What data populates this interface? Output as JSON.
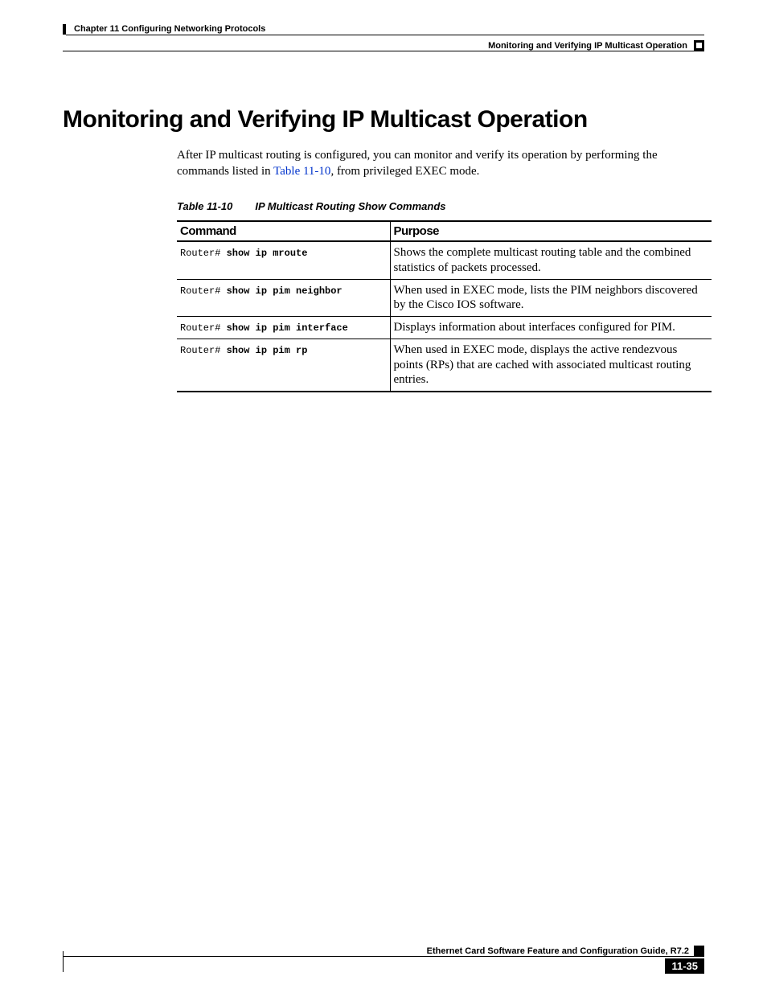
{
  "header": {
    "chapter_line": "Chapter 11 Configuring Networking Protocols",
    "section_line": "Monitoring and Verifying IP Multicast Operation"
  },
  "heading": "Monitoring and Verifying IP Multicast Operation",
  "intro": {
    "part1": "After IP multicast routing is configured, you can monitor and verify its operation by performing the commands listed in ",
    "link_text": "Table 11-10",
    "part2": ", from privileged EXEC mode."
  },
  "table": {
    "caption_num": "Table 11-10",
    "caption_title": "IP Multicast Routing Show Commands",
    "columns": {
      "command": "Command",
      "purpose": "Purpose"
    },
    "prompt": "Router# ",
    "rows": [
      {
        "cmd": "show ip mroute",
        "purpose": "Shows the complete multicast routing table and the combined statistics of packets processed."
      },
      {
        "cmd": "show ip pim neighbor",
        "purpose": "When used in EXEC mode, lists the PIM neighbors discovered by the Cisco IOS software."
      },
      {
        "cmd": "show ip pim interface",
        "purpose": "Displays information about interfaces configured for PIM."
      },
      {
        "cmd": "show ip pim rp",
        "purpose": "When used in EXEC mode, displays the active rendezvous points (RPs) that are cached with associated multicast routing entries."
      }
    ]
  },
  "footer": {
    "guide_title": "Ethernet Card Software Feature and Configuration Guide, R7.2",
    "page_number": "11-35"
  }
}
